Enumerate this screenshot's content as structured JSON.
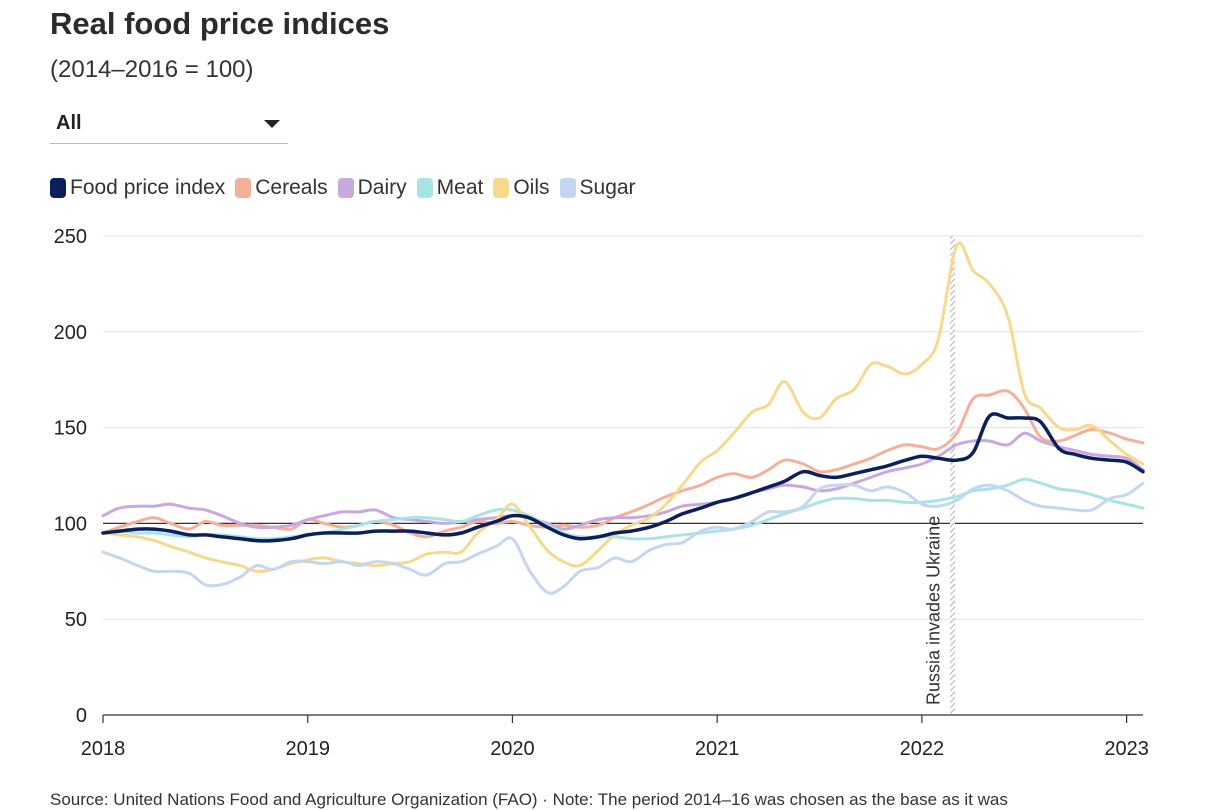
{
  "title": "Real food price indices",
  "subtitle": "(2014–2016 = 100)",
  "dropdown": {
    "value": "All"
  },
  "source": "Source: United Nations Food and Agriculture Organization (FAO) · Note: The period 2014–16 was chosen as the base as it was",
  "colors": {
    "food": "#0b1f5c",
    "cereals": "#f4b09a",
    "dairy": "#c8a8e0",
    "meat": "#a8e4e6",
    "oils": "#f7d98e",
    "sugar": "#c5d6f0"
  },
  "chart_data": {
    "type": "line",
    "title": "Real food price indices",
    "subtitle": "(2014–2016 = 100)",
    "xlabel": "",
    "ylabel": "",
    "xlim": [
      2018.0,
      2023.08
    ],
    "ylim": [
      0,
      250
    ],
    "yticks": [
      0,
      50,
      100,
      150,
      200,
      250
    ],
    "ytick_labels": [
      "0",
      "50",
      "100",
      "150",
      "200",
      "250"
    ],
    "xticks": [
      2018,
      2019,
      2020,
      2021,
      2022,
      2023
    ],
    "xtick_labels": [
      "2018",
      "2019",
      "2020",
      "2021",
      "2022",
      "2023"
    ],
    "grid": true,
    "legend_position": "top-left",
    "reference_line": {
      "y": 100
    },
    "annotation": {
      "x": 2022.15,
      "label": "Russia invades Ukraine"
    },
    "series": [
      {
        "name": "Food price index",
        "color_key": "food",
        "x": [
          2018.0,
          2018.08,
          2018.17,
          2018.25,
          2018.33,
          2018.42,
          2018.5,
          2018.58,
          2018.67,
          2018.75,
          2018.83,
          2018.92,
          2019.0,
          2019.08,
          2019.17,
          2019.25,
          2019.33,
          2019.42,
          2019.5,
          2019.58,
          2019.67,
          2019.75,
          2019.83,
          2019.92,
          2020.0,
          2020.08,
          2020.17,
          2020.25,
          2020.33,
          2020.42,
          2020.5,
          2020.58,
          2020.67,
          2020.75,
          2020.83,
          2020.92,
          2021.0,
          2021.08,
          2021.17,
          2021.25,
          2021.33,
          2021.42,
          2021.5,
          2021.58,
          2021.67,
          2021.75,
          2021.83,
          2021.92,
          2022.0,
          2022.08,
          2022.17,
          2022.25,
          2022.33,
          2022.42,
          2022.5,
          2022.58,
          2022.67,
          2022.75,
          2022.83,
          2022.92,
          2023.0,
          2023.08
        ],
        "y": [
          95,
          96,
          97,
          97,
          96,
          94,
          94,
          93,
          92,
          91,
          91,
          92,
          94,
          95,
          95,
          95,
          96,
          96,
          96,
          95,
          94,
          95,
          98,
          101,
          104,
          103,
          98,
          94,
          92,
          93,
          95,
          96,
          98,
          101,
          105,
          108,
          111,
          113,
          116,
          119,
          122,
          127,
          125,
          124,
          126,
          128,
          130,
          133,
          135,
          134,
          133,
          137,
          156,
          155,
          155,
          153,
          139,
          136,
          134,
          133,
          132,
          127
        ]
      },
      {
        "name": "Cereals",
        "color_key": "cereals",
        "x": [
          2018.0,
          2018.08,
          2018.17,
          2018.25,
          2018.33,
          2018.42,
          2018.5,
          2018.58,
          2018.67,
          2018.75,
          2018.83,
          2018.92,
          2019.0,
          2019.08,
          2019.17,
          2019.25,
          2019.33,
          2019.42,
          2019.5,
          2019.58,
          2019.67,
          2019.75,
          2019.83,
          2019.92,
          2020.0,
          2020.08,
          2020.17,
          2020.25,
          2020.33,
          2020.42,
          2020.5,
          2020.58,
          2020.67,
          2020.75,
          2020.83,
          2020.92,
          2021.0,
          2021.08,
          2021.17,
          2021.25,
          2021.33,
          2021.42,
          2021.5,
          2021.58,
          2021.67,
          2021.75,
          2021.83,
          2021.92,
          2022.0,
          2022.08,
          2022.17,
          2022.25,
          2022.33,
          2022.42,
          2022.5,
          2022.58,
          2022.67,
          2022.75,
          2022.83,
          2022.92,
          2023.0,
          2023.08
        ],
        "y": [
          95,
          98,
          101,
          103,
          100,
          97,
          101,
          99,
          99,
          99,
          98,
          97,
          102,
          100,
          98,
          99,
          101,
          99,
          95,
          93,
          96,
          98,
          101,
          100,
          101,
          99,
          98,
          99,
          98,
          99,
          103,
          106,
          110,
          114,
          117,
          120,
          124,
          126,
          124,
          128,
          133,
          131,
          127,
          128,
          131,
          134,
          138,
          141,
          140,
          139,
          147,
          165,
          167,
          169,
          160,
          145,
          143,
          146,
          149,
          147,
          144,
          142
        ]
      },
      {
        "name": "Dairy",
        "color_key": "dairy",
        "x": [
          2018.0,
          2018.08,
          2018.17,
          2018.25,
          2018.33,
          2018.42,
          2018.5,
          2018.58,
          2018.67,
          2018.75,
          2018.83,
          2018.92,
          2019.0,
          2019.08,
          2019.17,
          2019.25,
          2019.33,
          2019.42,
          2019.5,
          2019.58,
          2019.67,
          2019.75,
          2019.83,
          2019.92,
          2020.0,
          2020.08,
          2020.17,
          2020.25,
          2020.33,
          2020.42,
          2020.5,
          2020.58,
          2020.67,
          2020.75,
          2020.83,
          2020.92,
          2021.0,
          2021.08,
          2021.17,
          2021.25,
          2021.33,
          2021.42,
          2021.5,
          2021.58,
          2021.67,
          2021.75,
          2021.83,
          2021.92,
          2022.0,
          2022.08,
          2022.17,
          2022.25,
          2022.33,
          2022.42,
          2022.5,
          2022.58,
          2022.67,
          2022.75,
          2022.83,
          2022.92,
          2023.0,
          2023.08
        ],
        "y": [
          104,
          108,
          109,
          109,
          110,
          108,
          107,
          104,
          100,
          98,
          98,
          99,
          102,
          104,
          106,
          106,
          107,
          103,
          102,
          101,
          100,
          101,
          102,
          103,
          104,
          103,
          100,
          97,
          99,
          102,
          103,
          103,
          104,
          106,
          109,
          110,
          111,
          113,
          116,
          118,
          120,
          119,
          117,
          118,
          121,
          124,
          127,
          129,
          131,
          135,
          141,
          143,
          143,
          141,
          147,
          143,
          140,
          138,
          136,
          135,
          134,
          128
        ]
      },
      {
        "name": "Meat",
        "color_key": "meat",
        "x": [
          2018.0,
          2018.08,
          2018.17,
          2018.25,
          2018.33,
          2018.42,
          2018.5,
          2018.58,
          2018.67,
          2018.75,
          2018.83,
          2018.92,
          2019.0,
          2019.08,
          2019.17,
          2019.25,
          2019.33,
          2019.42,
          2019.5,
          2019.58,
          2019.67,
          2019.75,
          2019.83,
          2019.92,
          2020.0,
          2020.08,
          2020.17,
          2020.25,
          2020.33,
          2020.42,
          2020.5,
          2020.58,
          2020.67,
          2020.75,
          2020.83,
          2020.92,
          2021.0,
          2021.08,
          2021.17,
          2021.25,
          2021.33,
          2021.42,
          2021.5,
          2021.58,
          2021.67,
          2021.75,
          2021.83,
          2021.92,
          2022.0,
          2022.08,
          2022.17,
          2022.25,
          2022.33,
          2022.42,
          2022.5,
          2022.58,
          2022.67,
          2022.75,
          2022.83,
          2022.92,
          2023.0,
          2023.08
        ],
        "y": [
          95,
          96,
          95,
          95,
          94,
          93,
          94,
          94,
          93,
          92,
          92,
          93,
          94,
          95,
          97,
          99,
          101,
          102,
          103,
          103,
          102,
          101,
          104,
          107,
          107,
          104,
          99,
          95,
          93,
          93,
          93,
          92,
          92,
          93,
          94,
          95,
          96,
          97,
          99,
          102,
          105,
          108,
          111,
          113,
          113,
          112,
          112,
          111,
          111,
          112,
          114,
          117,
          118,
          120,
          123,
          121,
          118,
          117,
          115,
          112,
          110,
          108
        ]
      },
      {
        "name": "Oils",
        "color_key": "oils",
        "x": [
          2018.0,
          2018.08,
          2018.17,
          2018.25,
          2018.33,
          2018.42,
          2018.5,
          2018.58,
          2018.67,
          2018.75,
          2018.83,
          2018.92,
          2019.0,
          2019.08,
          2019.17,
          2019.25,
          2019.33,
          2019.42,
          2019.5,
          2019.58,
          2019.67,
          2019.75,
          2019.83,
          2019.92,
          2020.0,
          2020.08,
          2020.17,
          2020.25,
          2020.33,
          2020.42,
          2020.5,
          2020.58,
          2020.67,
          2020.75,
          2020.83,
          2020.92,
          2021.0,
          2021.08,
          2021.17,
          2021.25,
          2021.33,
          2021.42,
          2021.5,
          2021.58,
          2021.67,
          2021.75,
          2021.83,
          2021.92,
          2022.0,
          2022.08,
          2022.17,
          2022.25,
          2022.33,
          2022.42,
          2022.5,
          2022.58,
          2022.67,
          2022.75,
          2022.83,
          2022.92,
          2023.0,
          2023.08
        ],
        "y": [
          95,
          94,
          93,
          91,
          88,
          85,
          82,
          80,
          78,
          75,
          76,
          79,
          81,
          82,
          80,
          79,
          78,
          79,
          80,
          84,
          85,
          85,
          95,
          102,
          110,
          99,
          86,
          80,
          78,
          86,
          94,
          99,
          103,
          110,
          120,
          132,
          138,
          147,
          158,
          162,
          174,
          158,
          155,
          165,
          170,
          183,
          182,
          178,
          183,
          196,
          245,
          232,
          225,
          208,
          168,
          160,
          150,
          149,
          151,
          143,
          136,
          131
        ]
      },
      {
        "name": "Sugar",
        "color_key": "sugar",
        "x": [
          2018.0,
          2018.08,
          2018.17,
          2018.25,
          2018.33,
          2018.42,
          2018.5,
          2018.58,
          2018.67,
          2018.75,
          2018.83,
          2018.92,
          2019.0,
          2019.08,
          2019.17,
          2019.25,
          2019.33,
          2019.42,
          2019.5,
          2019.58,
          2019.67,
          2019.75,
          2019.83,
          2019.92,
          2020.0,
          2020.08,
          2020.17,
          2020.25,
          2020.33,
          2020.42,
          2020.5,
          2020.58,
          2020.67,
          2020.75,
          2020.83,
          2020.92,
          2021.0,
          2021.08,
          2021.17,
          2021.25,
          2021.33,
          2021.42,
          2021.5,
          2021.58,
          2021.67,
          2021.75,
          2021.83,
          2021.92,
          2022.0,
          2022.08,
          2022.17,
          2022.25,
          2022.33,
          2022.42,
          2022.5,
          2022.58,
          2022.67,
          2022.75,
          2022.83,
          2022.92,
          2023.0,
          2023.08
        ],
        "y": [
          85,
          82,
          78,
          75,
          75,
          74,
          68,
          68,
          72,
          78,
          76,
          80,
          80,
          79,
          80,
          78,
          80,
          79,
          76,
          73,
          79,
          80,
          84,
          88,
          92,
          76,
          64,
          67,
          75,
          77,
          82,
          80,
          86,
          89,
          90,
          96,
          98,
          97,
          101,
          106,
          106,
          109,
          118,
          120,
          120,
          117,
          119,
          116,
          110,
          109,
          112,
          118,
          120,
          117,
          112,
          109,
          108,
          107,
          107,
          113,
          115,
          121
        ]
      }
    ]
  }
}
